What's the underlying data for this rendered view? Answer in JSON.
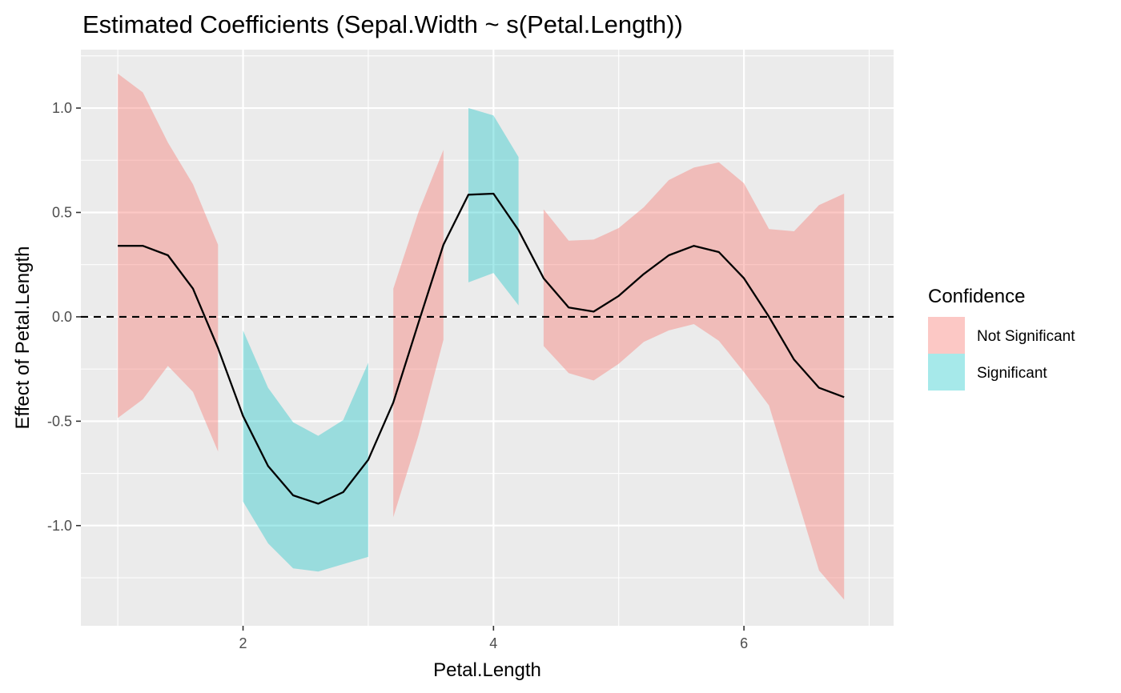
{
  "chart_data": {
    "type": "area",
    "title": "Estimated Coefficients (Sepal.Width ~ s(Petal.Length))",
    "xlabel": "Petal.Length",
    "ylabel": "Effect of Petal.Length",
    "xlim": [
      0.705,
      7.195
    ],
    "ylim": [
      -1.48,
      1.28
    ],
    "x_ticks": [
      2,
      4,
      6
    ],
    "x_tick_labels": [
      "2",
      "4",
      "6"
    ],
    "y_ticks": [
      -1.0,
      -0.5,
      0.0,
      0.5,
      1.0
    ],
    "y_tick_labels": [
      "-1.0",
      "-0.5",
      "0.0",
      "0.5",
      "1.0"
    ],
    "grid": true,
    "reference_line": {
      "y": 0,
      "style": "dashed",
      "color": "#000000"
    },
    "line_color": "#000000",
    "legend": {
      "title": "Confidence",
      "position": "right",
      "entries": [
        {
          "label": "Not Significant",
          "color": "#F8766D"
        },
        {
          "label": "Significant",
          "color": "#00BFC4"
        }
      ]
    },
    "estimate": {
      "x": [
        1.0,
        1.2,
        1.4,
        1.6,
        1.8,
        2.0,
        2.2,
        2.4,
        2.6,
        2.8,
        3.0,
        3.2,
        3.4,
        3.6,
        3.8,
        4.0,
        4.2,
        4.4,
        4.6,
        4.8,
        5.0,
        5.2,
        5.4,
        5.6,
        5.8,
        6.0,
        6.2,
        6.4,
        6.6,
        6.8
      ],
      "y": [
        0.34,
        0.34,
        0.295,
        0.135,
        -0.15,
        -0.475,
        -0.715,
        -0.855,
        -0.895,
        -0.84,
        -0.685,
        -0.41,
        -0.03,
        0.345,
        0.585,
        0.59,
        0.415,
        0.185,
        0.045,
        0.025,
        0.1,
        0.205,
        0.295,
        0.34,
        0.31,
        0.185,
        0.0,
        -0.205,
        -0.34,
        -0.385
      ]
    },
    "bands": [
      {
        "group": "Not Significant",
        "x": [
          1.0,
          1.2,
          1.4,
          1.6,
          1.8
        ],
        "lower": [
          -0.485,
          -0.395,
          -0.235,
          -0.36,
          -0.645
        ],
        "upper": [
          1.165,
          1.075,
          0.835,
          0.635,
          0.345
        ]
      },
      {
        "group": "Significant",
        "x": [
          2.0,
          2.2,
          2.4,
          2.6,
          2.8,
          3.0
        ],
        "lower": [
          -0.885,
          -1.085,
          -1.205,
          -1.22,
          -1.185,
          -1.15
        ],
        "upper": [
          -0.065,
          -0.34,
          -0.505,
          -0.57,
          -0.495,
          -0.22
        ]
      },
      {
        "group": "Not Significant",
        "x": [
          3.2,
          3.4,
          3.6
        ],
        "lower": [
          -0.96,
          -0.57,
          -0.11
        ],
        "upper": [
          0.135,
          0.5,
          0.8
        ]
      },
      {
        "group": "Significant",
        "x": [
          3.8,
          4.0,
          4.2
        ],
        "lower": [
          0.165,
          0.21,
          0.055
        ],
        "upper": [
          1.0,
          0.965,
          0.765
        ]
      },
      {
        "group": "Not Significant",
        "x": [
          4.4,
          4.6,
          4.8,
          5.0,
          5.2,
          5.4,
          5.6,
          5.8,
          6.0,
          6.2,
          6.4,
          6.6,
          6.8
        ],
        "lower": [
          -0.14,
          -0.27,
          -0.305,
          -0.225,
          -0.12,
          -0.065,
          -0.035,
          -0.115,
          -0.265,
          -0.425,
          -0.82,
          -1.215,
          -1.355
        ],
        "upper": [
          0.515,
          0.365,
          0.37,
          0.425,
          0.525,
          0.655,
          0.715,
          0.74,
          0.64,
          0.42,
          0.41,
          0.535,
          0.59
        ]
      }
    ]
  }
}
